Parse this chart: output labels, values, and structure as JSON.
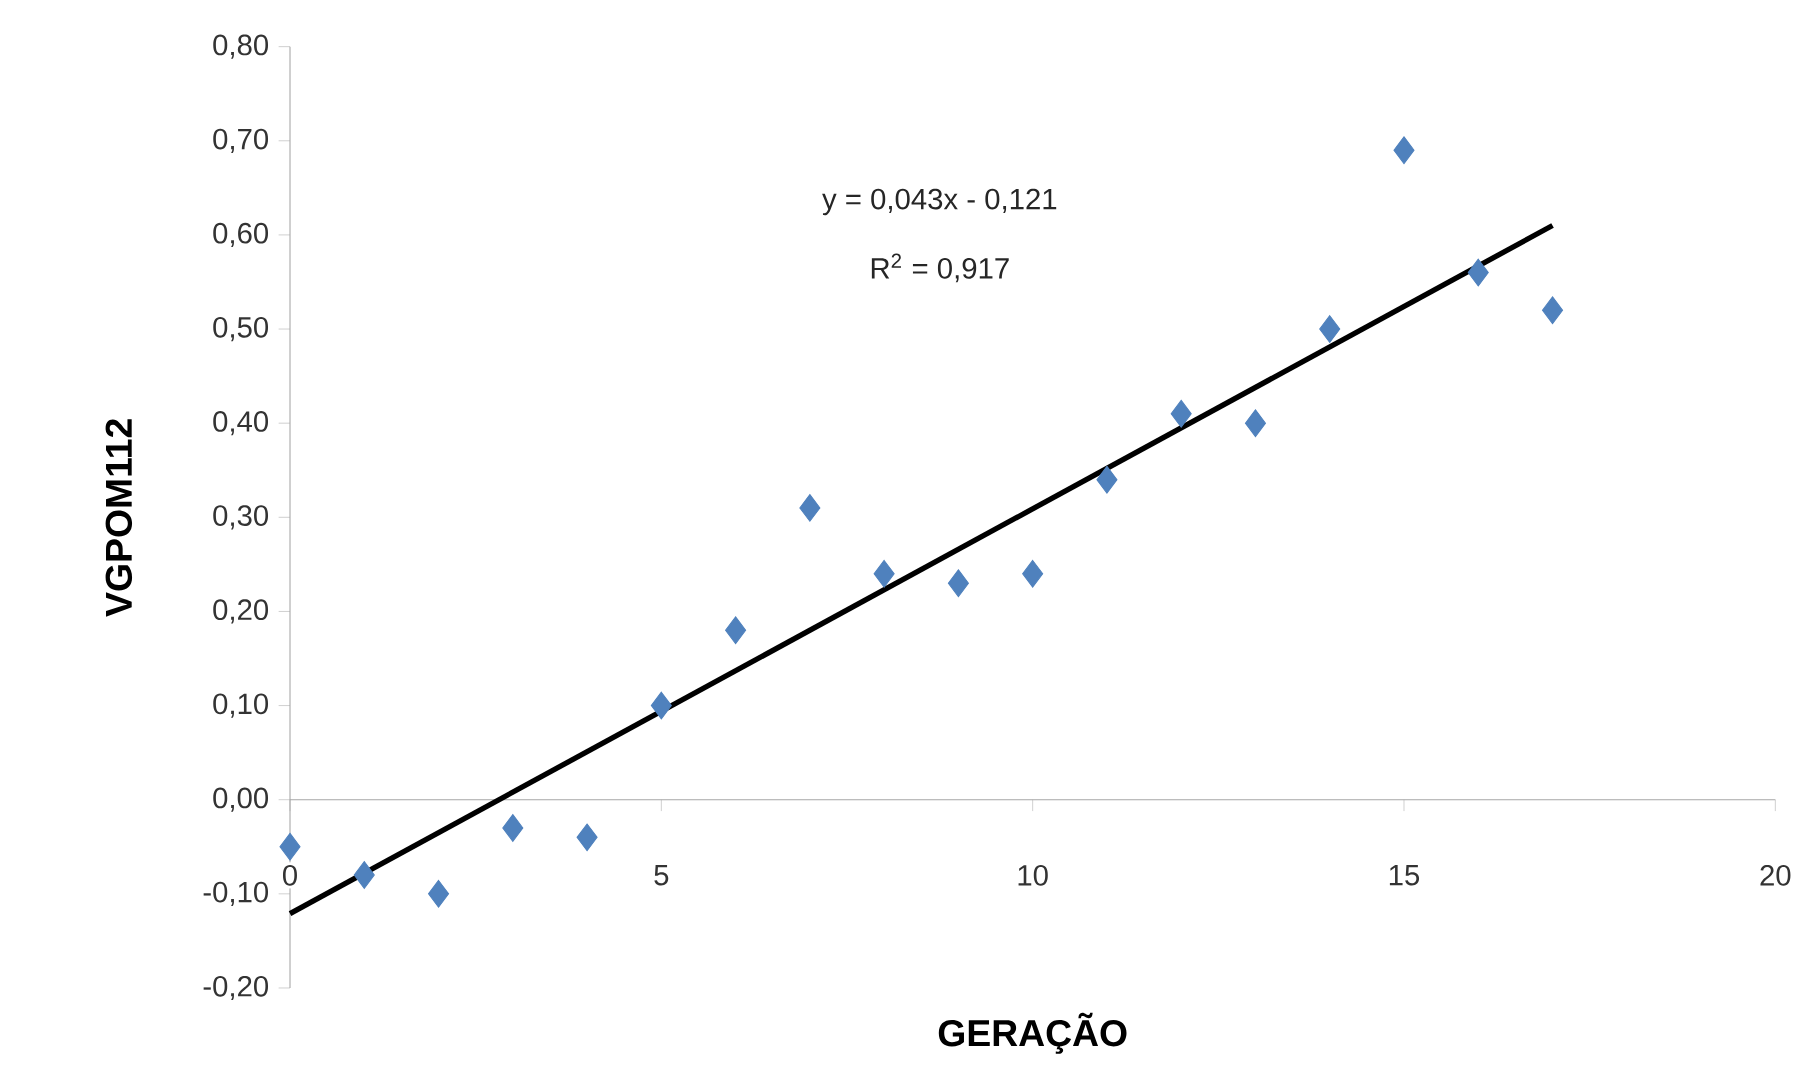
{
  "chart_data": {
    "type": "scatter",
    "xlabel": "GERAÇÃO",
    "ylabel": "VGPOM112",
    "annotations": [
      "y = 0,043x - 0,121",
      "R$^{2}$ = 0,917"
    ],
    "series": [
      {
        "type": "scatter",
        "color": "#4f81bd",
        "marker": "diamond",
        "x": [
          0,
          1,
          2,
          3,
          4,
          5,
          6,
          7,
          8,
          9,
          10,
          11,
          12,
          13,
          14,
          15,
          16,
          17
        ],
        "values": [
          -0.05,
          -0.08,
          -0.1,
          -0.03,
          -0.04,
          0.1,
          0.18,
          0.31,
          0.24,
          0.23,
          0.24,
          0.34,
          0.41,
          0.4,
          0.5,
          0.69,
          0.56,
          0.52
        ]
      },
      {
        "type": "line",
        "color": "#000000",
        "marker": "none",
        "line_style": "solid",
        "x": [
          0,
          17
        ],
        "values": [
          -0.121,
          0.61
        ]
      }
    ],
    "xlim": [
      0,
      20
    ],
    "ylim": [
      -0.2,
      0.8
    ],
    "xticks": [
      0,
      5,
      10,
      15,
      20
    ],
    "yticks": [
      {
        "value": -0.2,
        "label": "-0,20"
      },
      {
        "value": -0.1,
        "label": "-0,10"
      },
      {
        "value": 0,
        "label": "0,00"
      },
      {
        "value": 0.1,
        "label": "0,10"
      },
      {
        "value": 0.2,
        "label": "0,20"
      },
      {
        "value": 0.3,
        "label": "0,30"
      },
      {
        "value": 0.4,
        "label": "0,40"
      },
      {
        "value": 0.5,
        "label": "0,50"
      },
      {
        "value": 0.6,
        "label": "0,60"
      },
      {
        "value": 0.7,
        "label": "0,70"
      },
      {
        "value": 0.8,
        "label": "0,80"
      }
    ],
    "grid": false
  }
}
